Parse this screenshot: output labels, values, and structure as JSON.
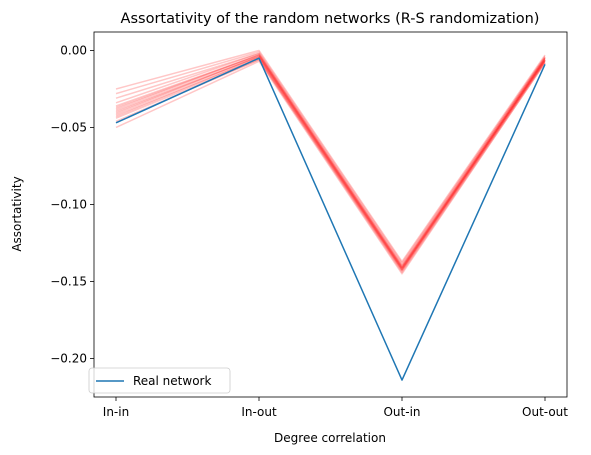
{
  "chart_data": {
    "type": "line",
    "title": "Assortativity of the random networks (R-S randomization)",
    "xlabel": "Degree correlation",
    "ylabel": "Assortativity",
    "categories": [
      "In-in",
      "In-out",
      "Out-in",
      "Out-out"
    ],
    "ylim": [
      -0.225,
      0.012
    ],
    "yticks": [
      0.0,
      -0.05,
      -0.1,
      -0.15,
      -0.2
    ],
    "ytick_labels": [
      "0.00",
      "−0.05",
      "−0.10",
      "−0.15",
      "−0.20"
    ],
    "grid": false,
    "legend": {
      "placement": "lower-left",
      "entries": [
        "Real network"
      ]
    },
    "series": [
      {
        "name": "Real network",
        "color": "#1f77b4",
        "values": [
          -0.047,
          -0.005,
          -0.214,
          -0.009
        ]
      },
      {
        "color": "#ff0000",
        "alpha": 0.22,
        "values": [
          -0.025,
          0.0,
          -0.137,
          -0.003
        ]
      },
      {
        "color": "#ff0000",
        "alpha": 0.22,
        "values": [
          -0.028,
          -0.001,
          -0.138,
          -0.004
        ]
      },
      {
        "color": "#ff0000",
        "alpha": 0.22,
        "values": [
          -0.031,
          -0.002,
          -0.139,
          -0.004
        ]
      },
      {
        "color": "#ff0000",
        "alpha": 0.22,
        "values": [
          -0.034,
          -0.002,
          -0.14,
          -0.005
        ]
      },
      {
        "color": "#ff0000",
        "alpha": 0.22,
        "values": [
          -0.036,
          -0.003,
          -0.14,
          -0.005
        ]
      },
      {
        "color": "#ff0000",
        "alpha": 0.22,
        "values": [
          -0.037,
          -0.003,
          -0.141,
          -0.005
        ]
      },
      {
        "color": "#ff0000",
        "alpha": 0.22,
        "values": [
          -0.038,
          -0.003,
          -0.141,
          -0.006
        ]
      },
      {
        "color": "#ff0000",
        "alpha": 0.22,
        "values": [
          -0.039,
          -0.004,
          -0.141,
          -0.006
        ]
      },
      {
        "color": "#ff0000",
        "alpha": 0.22,
        "values": [
          -0.04,
          -0.004,
          -0.142,
          -0.006
        ]
      },
      {
        "color": "#ff0000",
        "alpha": 0.22,
        "values": [
          -0.041,
          -0.004,
          -0.142,
          -0.006
        ]
      },
      {
        "color": "#ff0000",
        "alpha": 0.22,
        "values": [
          -0.042,
          -0.005,
          -0.142,
          -0.007
        ]
      },
      {
        "color": "#ff0000",
        "alpha": 0.22,
        "values": [
          -0.043,
          -0.005,
          -0.143,
          -0.007
        ]
      },
      {
        "color": "#ff0000",
        "alpha": 0.22,
        "values": [
          -0.044,
          -0.006,
          -0.143,
          -0.007
        ]
      },
      {
        "color": "#ff0000",
        "alpha": 0.22,
        "values": [
          -0.046,
          -0.006,
          -0.144,
          -0.008
        ]
      },
      {
        "color": "#ff0000",
        "alpha": 0.22,
        "values": [
          -0.05,
          -0.007,
          -0.145,
          -0.008
        ]
      }
    ]
  }
}
